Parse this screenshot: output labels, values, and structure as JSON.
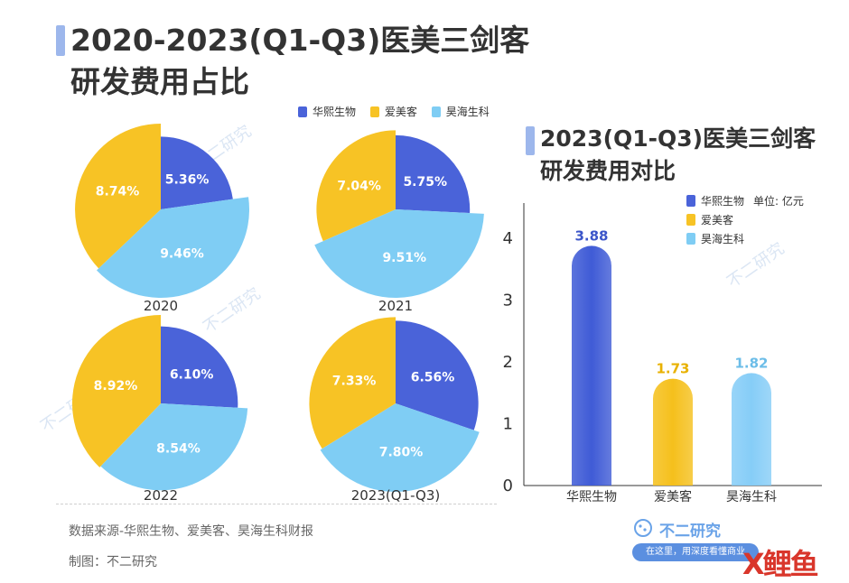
{
  "title": {
    "line1": "2020-2023(Q1-Q3)医美三剑客",
    "line2": "研发费用占比"
  },
  "legend": [
    {
      "name": "华熙生物",
      "color": "#4a63d9"
    },
    {
      "name": "爱美客",
      "color": "#f7c325"
    },
    {
      "name": "昊海生科",
      "color": "#7fcdf4"
    }
  ],
  "colors": {
    "huaxi": "#4a63d9",
    "aimeike": "#f7c325",
    "haohai": "#7fcdf4",
    "accent": "#9db7ec"
  },
  "pies": [
    {
      "year": "2020",
      "values": [
        5.36,
        8.74,
        9.46
      ],
      "labels": [
        "5.36%",
        "8.74%",
        "9.46%"
      ]
    },
    {
      "year": "2021",
      "values": [
        5.75,
        7.04,
        9.51
      ],
      "labels": [
        "5.75%",
        "7.04%",
        "9.51%"
      ]
    },
    {
      "year": "2022",
      "values": [
        6.1,
        8.92,
        8.54
      ],
      "labels": [
        "6.10%",
        "8.92%",
        "8.54%"
      ]
    },
    {
      "year": "2023(Q1-Q3)",
      "values": [
        6.56,
        7.33,
        7.8
      ],
      "labels": [
        "6.56%",
        "7.33%",
        "7.80%"
      ]
    }
  ],
  "bar_title": {
    "line1": "2023(Q1-Q3)医美三剑客",
    "line2": "研发费用对比"
  },
  "bar_unit": "单位: 亿元",
  "chart_data": [
    {
      "type": "pie",
      "title": "2020",
      "categories": [
        "华熙生物",
        "爱美客",
        "昊海生科"
      ],
      "values": [
        5.36,
        8.74,
        9.46
      ]
    },
    {
      "type": "pie",
      "title": "2021",
      "categories": [
        "华熙生物",
        "爱美客",
        "昊海生科"
      ],
      "values": [
        5.75,
        7.04,
        9.51
      ]
    },
    {
      "type": "pie",
      "title": "2022",
      "categories": [
        "华熙生物",
        "爱美客",
        "昊海生科"
      ],
      "values": [
        6.1,
        8.92,
        8.54
      ]
    },
    {
      "type": "pie",
      "title": "2023(Q1-Q3)",
      "categories": [
        "华熙生物",
        "爱美客",
        "昊海生科"
      ],
      "values": [
        6.56,
        7.33,
        7.8
      ]
    },
    {
      "type": "bar",
      "categories": [
        "华熙生物",
        "爱美客",
        "昊海生科"
      ],
      "values": [
        3.88,
        1.73,
        1.82
      ],
      "value_labels": [
        "3.88",
        "1.73",
        "1.82"
      ],
      "ylim": [
        0,
        4.5
      ],
      "yticks": [
        "0",
        "1",
        "2",
        "3",
        "4"
      ]
    }
  ],
  "source": "数据来源-华熙生物、爱美客、昊海生科财报",
  "credit": "制图：不二研究",
  "brand": {
    "name": "不二研究",
    "slogan": "在这里，用深度看懂商业",
    "red_logo": "X鲤鱼"
  },
  "watermark": "不二研究"
}
